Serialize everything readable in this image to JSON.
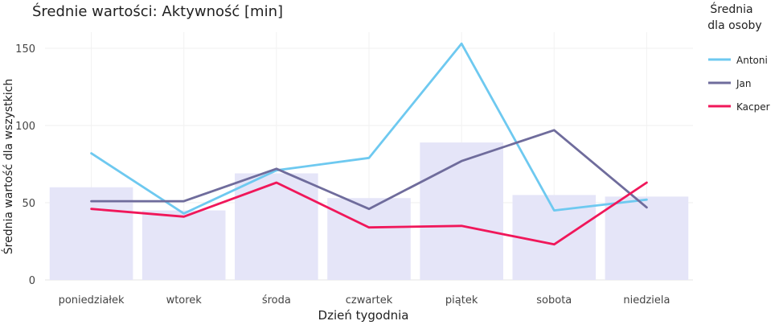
{
  "chart_data": {
    "type": "bar+line",
    "title": "Średnie wartości:  Aktywność [min]",
    "xlabel": "Dzień tygodnia",
    "ylabel": "Średnia wartość dla wszystkich",
    "categories": [
      "poniedziałek",
      "wtorek",
      "środa",
      "czwartek",
      "piątek",
      "sobota",
      "niedziela"
    ],
    "ylim": [
      0,
      160
    ],
    "yticks": [
      0,
      50,
      100,
      150
    ],
    "grid": true,
    "bars": {
      "values": [
        60,
        45,
        69,
        53,
        89,
        55,
        54
      ],
      "color": "#e5e5f8"
    },
    "legend": {
      "title_line1": "Średnia",
      "title_line2": "dla osoby",
      "placement": "right"
    },
    "series": [
      {
        "name": "Antoni",
        "color": "#6ec9f0",
        "values": [
          82,
          43,
          71,
          79,
          153,
          45,
          52
        ]
      },
      {
        "name": "Jan",
        "color": "#6f6c9c",
        "values": [
          51,
          51,
          72,
          46,
          77,
          97,
          47
        ]
      },
      {
        "name": "Kacper",
        "color": "#f0175a",
        "values": [
          46,
          41,
          63,
          34,
          35,
          23,
          63
        ]
      }
    ]
  }
}
